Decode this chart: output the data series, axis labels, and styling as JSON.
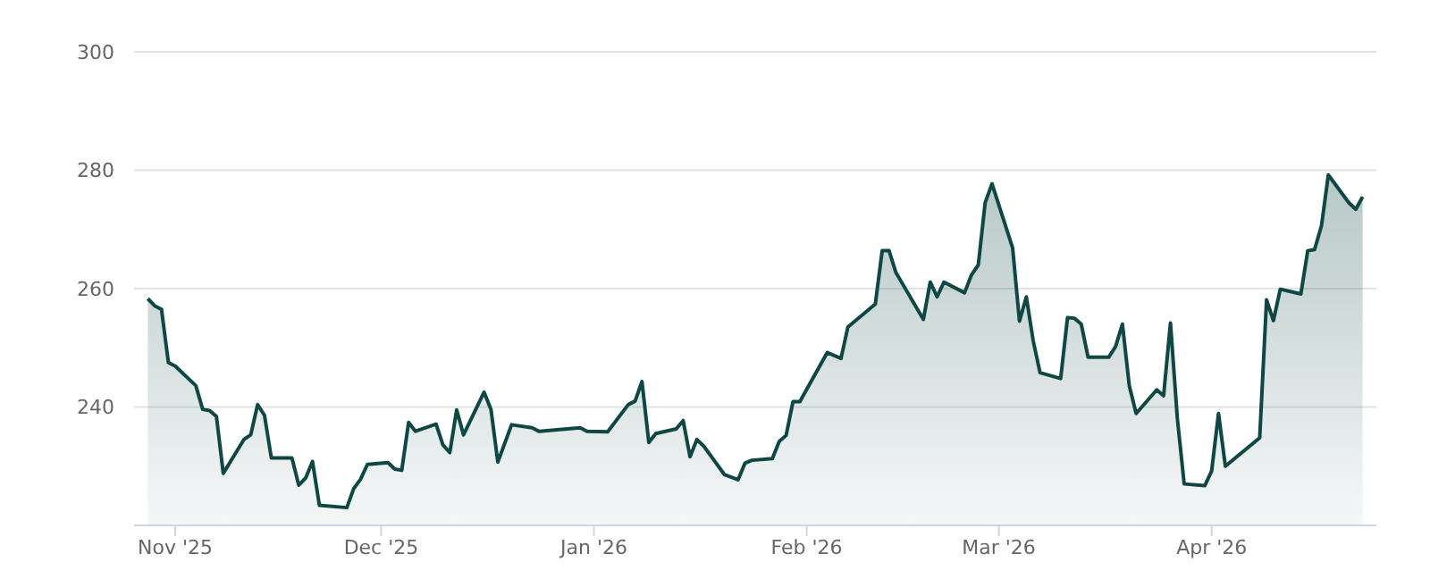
{
  "chart_data": {
    "type": "area",
    "xlim": [
      "2025-10-26",
      "2026-04-25"
    ],
    "xticks": [
      {
        "value": "2025-11-01",
        "label": "Nov '25"
      },
      {
        "value": "2025-12-01",
        "label": "Dec '25"
      },
      {
        "value": "2026-01-01",
        "label": "Jan '26"
      },
      {
        "value": "2026-02-01",
        "label": "Feb '26"
      },
      {
        "value": "2026-03-01",
        "label": "Mar '26"
      },
      {
        "value": "2026-04-01",
        "label": "Apr '26"
      }
    ],
    "ylim": [
      220,
      300
    ],
    "yticks": [
      240,
      260,
      280,
      300
    ],
    "grid": "y",
    "legend": false,
    "x": [
      "2025-10-28",
      "2025-10-29",
      "2025-10-30",
      "2025-10-31",
      "2025-11-01",
      "2025-11-04",
      "2025-11-05",
      "2025-11-06",
      "2025-11-07",
      "2025-11-08",
      "2025-11-11",
      "2025-11-12",
      "2025-11-13",
      "2025-11-14",
      "2025-11-15",
      "2025-11-18",
      "2025-11-19",
      "2025-11-20",
      "2025-11-21",
      "2025-11-22",
      "2025-11-26",
      "2025-11-27",
      "2025-11-28",
      "2025-11-29",
      "2025-12-02",
      "2025-12-03",
      "2025-12-04",
      "2025-12-05",
      "2025-12-06",
      "2025-12-09",
      "2025-12-10",
      "2025-12-11",
      "2025-12-12",
      "2025-12-13",
      "2025-12-16",
      "2025-12-17",
      "2025-12-18",
      "2025-12-20",
      "2025-12-23",
      "2025-12-24",
      "2025-12-30",
      "2025-12-31",
      "2026-01-03",
      "2026-01-06",
      "2026-01-07",
      "2026-01-08",
      "2026-01-09",
      "2026-01-10",
      "2026-01-13",
      "2026-01-14",
      "2026-01-15",
      "2026-01-16",
      "2026-01-17",
      "2026-01-20",
      "2026-01-22",
      "2026-01-23",
      "2026-01-24",
      "2026-01-27",
      "2026-01-28",
      "2026-01-29",
      "2026-01-30",
      "2026-01-31",
      "2026-02-04",
      "2026-02-06",
      "2026-02-07",
      "2026-02-11",
      "2026-02-12",
      "2026-02-13",
      "2026-02-14",
      "2026-02-18",
      "2026-02-19",
      "2026-02-20",
      "2026-02-21",
      "2026-02-24",
      "2026-02-25",
      "2026-02-26",
      "2026-02-27",
      "2026-02-28",
      "2026-03-03",
      "2026-03-04",
      "2026-03-05",
      "2026-03-06",
      "2026-03-07",
      "2026-03-10",
      "2026-03-11",
      "2026-03-12",
      "2026-03-13",
      "2026-03-14",
      "2026-03-17",
      "2026-03-18",
      "2026-03-19",
      "2026-03-20",
      "2026-03-21",
      "2026-03-24",
      "2026-03-25",
      "2026-03-26",
      "2026-03-27",
      "2026-03-28",
      "2026-03-31",
      "2026-04-01",
      "2026-04-02",
      "2026-04-03",
      "2026-04-08",
      "2026-04-09",
      "2026-04-10",
      "2026-04-11",
      "2026-04-14",
      "2026-04-15",
      "2026-04-16",
      "2026-04-17",
      "2026-04-18",
      "2026-04-21",
      "2026-04-22",
      "2026-04-23"
    ],
    "series": [
      {
        "color": "#0f4744",
        "values": [
          258.3,
          257.1,
          256.5,
          247.5,
          246.9,
          243.6,
          239.6,
          239.4,
          238.4,
          228.8,
          234.5,
          235.3,
          240.4,
          238.6,
          231.4,
          231.4,
          226.8,
          228.0,
          230.8,
          223.4,
          223.0,
          226.2,
          227.8,
          230.3,
          230.6,
          229.5,
          229.3,
          237.4,
          235.9,
          237.1,
          233.6,
          232.3,
          239.5,
          235.3,
          242.5,
          239.6,
          230.7,
          237.0,
          236.5,
          235.9,
          236.5,
          235.9,
          235.8,
          240.4,
          241.0,
          244.3,
          234.0,
          235.5,
          236.3,
          237.7,
          231.6,
          234.5,
          233.4,
          228.6,
          227.7,
          230.5,
          231.0,
          231.3,
          234.2,
          235.2,
          240.9,
          240.9,
          249.2,
          248.2,
          253.5,
          257.4,
          266.4,
          266.4,
          262.7,
          254.8,
          261.1,
          258.6,
          261.1,
          259.3,
          262.3,
          264.0,
          274.5,
          277.7,
          266.9,
          254.5,
          258.6,
          251.2,
          245.8,
          244.8,
          255.1,
          255.0,
          254.0,
          248.4,
          248.4,
          250.2,
          254.0,
          243.6,
          238.9,
          242.9,
          241.9,
          254.2,
          238.1,
          227.0,
          226.7,
          229.2,
          238.9,
          230.0,
          234.8,
          258.1,
          254.6,
          259.9,
          259.1,
          266.4,
          266.6,
          270.6,
          279.2,
          274.5,
          273.4,
          275.5
        ]
      }
    ]
  }
}
